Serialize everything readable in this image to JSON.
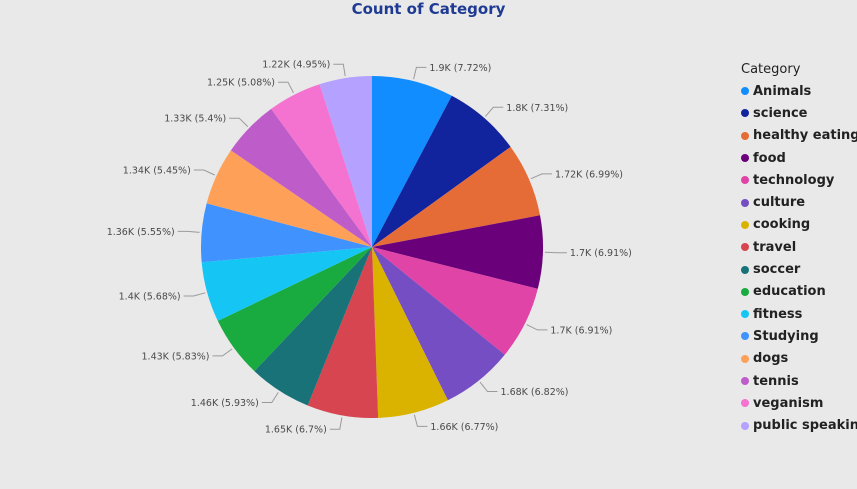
{
  "chart_data": {
    "type": "pie",
    "title": "Count of Category",
    "legend_title": "Category",
    "legend_position": "right",
    "slices": [
      {
        "name": "Animals",
        "value": 1.9,
        "label": "1.9K (7.72%)",
        "color": "#118dff"
      },
      {
        "name": "science",
        "value": 1.8,
        "label": "1.8K (7.31%)",
        "color": "#12239e"
      },
      {
        "name": "healthy eating",
        "value": 1.72,
        "label": "1.72K (6.99%)",
        "color": "#e66c37"
      },
      {
        "name": "food",
        "value": 1.7,
        "label": "1.7K (6.91%)",
        "color": "#6b007b"
      },
      {
        "name": "technology",
        "value": 1.7,
        "label": "1.7K (6.91%)",
        "color": "#e044a7"
      },
      {
        "name": "culture",
        "value": 1.68,
        "label": "1.68K (6.82%)",
        "color": "#744ec2"
      },
      {
        "name": "cooking",
        "value": 1.66,
        "label": "1.66K (6.77%)",
        "color": "#d9b300"
      },
      {
        "name": "travel",
        "value": 1.65,
        "label": "1.65K (6.7%)",
        "color": "#d64550"
      },
      {
        "name": "soccer",
        "value": 1.46,
        "label": "1.46K (5.93%)",
        "color": "#197278"
      },
      {
        "name": "education",
        "value": 1.43,
        "label": "1.43K (5.83%)",
        "color": "#1aab40"
      },
      {
        "name": "fitness",
        "value": 1.4,
        "label": "1.4K (5.68%)",
        "color": "#15c6f4"
      },
      {
        "name": "Studying",
        "value": 1.36,
        "label": "1.36K (5.55%)",
        "color": "#4092ff"
      },
      {
        "name": "dogs",
        "value": 1.34,
        "label": "1.34K (5.45%)",
        "color": "#ffa058"
      },
      {
        "name": "tennis",
        "value": 1.33,
        "label": "1.33K (5.4%)",
        "color": "#be5dc9"
      },
      {
        "name": "veganism",
        "value": 1.25,
        "label": "1.25K (5.08%)",
        "color": "#f472d0"
      },
      {
        "name": "public speaking",
        "value": 1.22,
        "label": "1.22K (4.95%)",
        "color": "#b5a1ff"
      }
    ]
  }
}
